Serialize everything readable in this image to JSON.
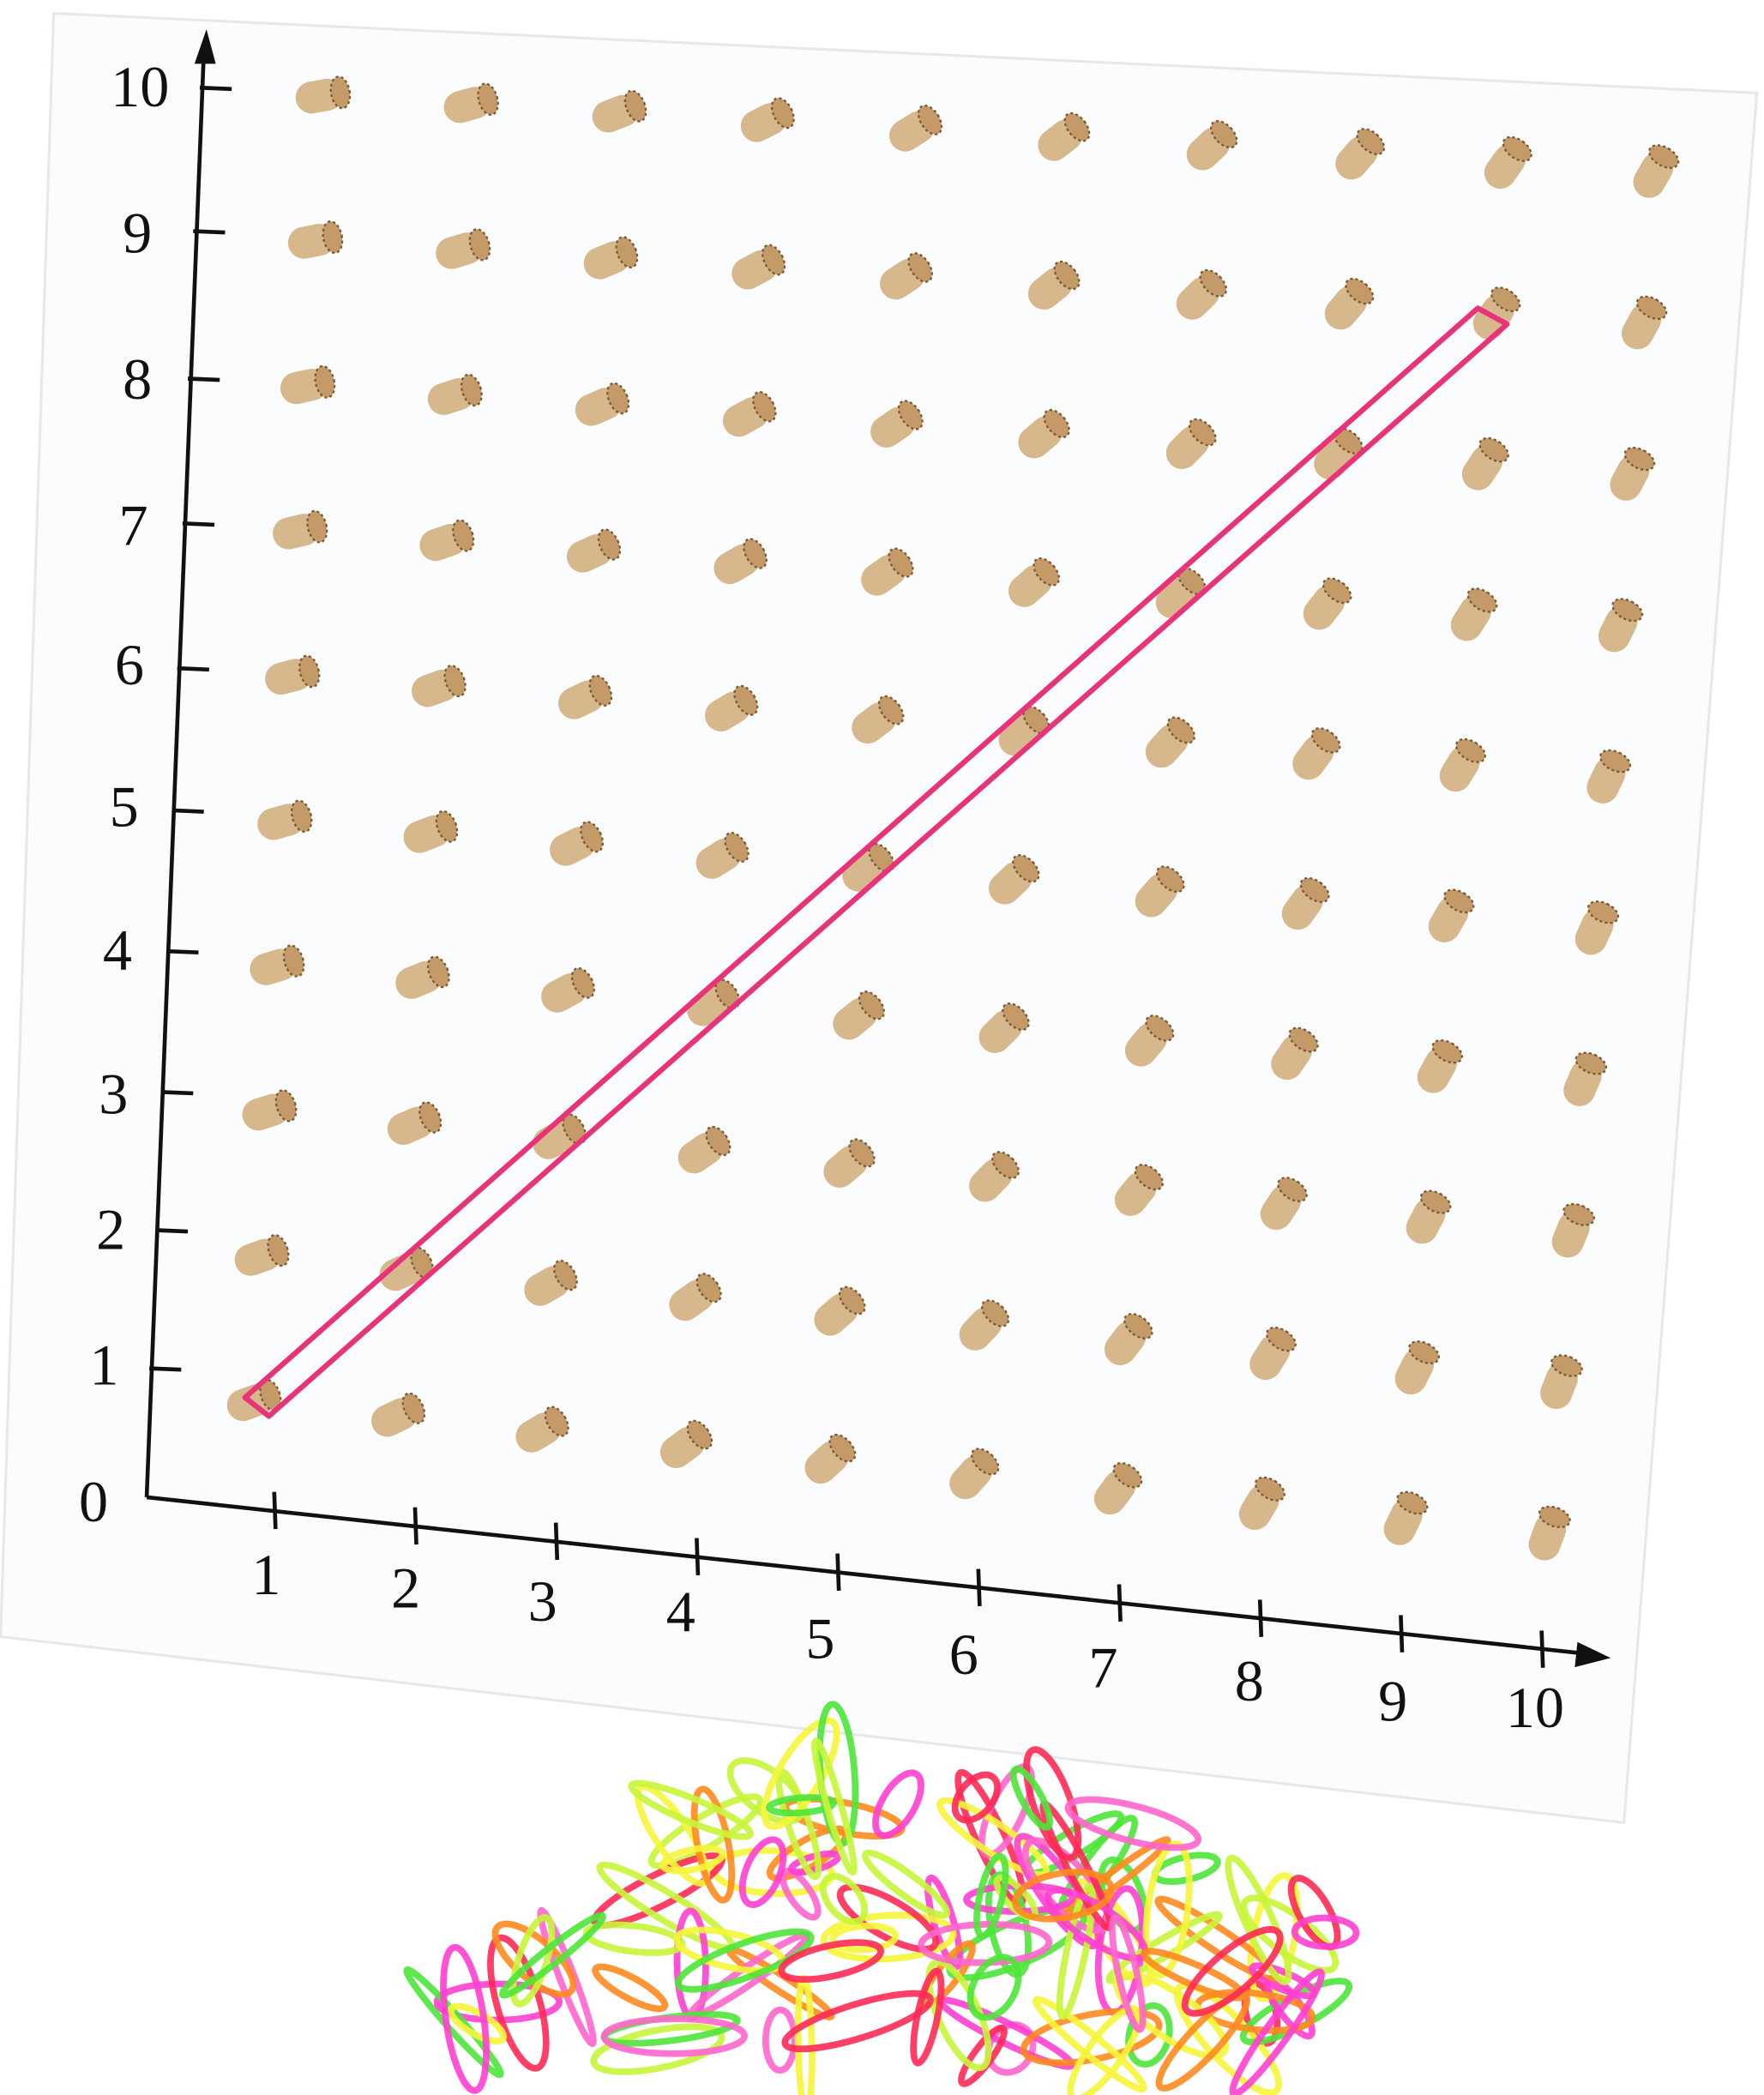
{
  "y_axis": {
    "labels": [
      "0",
      "1",
      "2",
      "3",
      "4",
      "5",
      "6",
      "7",
      "8",
      "9",
      "10"
    ]
  },
  "x_axis": {
    "labels": [
      "1",
      "2",
      "3",
      "4",
      "5",
      "6",
      "7",
      "8",
      "9",
      "10"
    ]
  }
}
